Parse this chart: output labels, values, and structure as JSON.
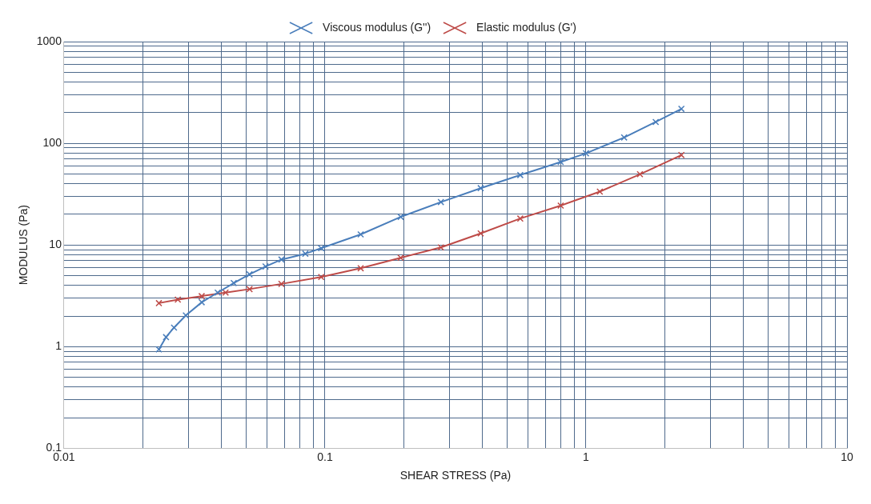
{
  "chart_data": {
    "type": "line",
    "xlabel": "SHEAR STRESS (Pa)",
    "ylabel": "MODULUS (Pa)",
    "log": "xy",
    "grid": true,
    "legend": "top",
    "marker": "cross",
    "line_style": "solid",
    "xlim": [
      0.01,
      10
    ],
    "ylim": [
      0.1,
      1000
    ],
    "xticks": [
      0.01,
      {
        "value": 0.02,
        "label": null
      },
      {
        "value": 0.03,
        "label": null
      },
      {
        "value": 0.04,
        "label": null
      },
      {
        "value": 0.05,
        "label": null
      },
      {
        "value": 0.06,
        "label": null
      },
      {
        "value": 0.07,
        "label": null
      },
      {
        "value": 0.08,
        "label": null
      },
      {
        "value": 0.09,
        "label": null
      },
      0.1,
      {
        "value": 0.2,
        "label": null
      },
      {
        "value": 0.3,
        "label": null
      },
      {
        "value": 0.4,
        "label": null
      },
      {
        "value": 0.5,
        "label": null
      },
      {
        "value": 0.6,
        "label": null
      },
      {
        "value": 0.7,
        "label": null
      },
      {
        "value": 0.8,
        "label": null
      },
      {
        "value": 0.9,
        "label": null
      },
      1,
      {
        "value": 2,
        "label": null
      },
      {
        "value": 3,
        "label": null
      },
      {
        "value": 4,
        "label": null
      },
      {
        "value": 5,
        "label": null
      },
      {
        "value": 6,
        "label": null
      },
      {
        "value": 7,
        "label": null
      },
      {
        "value": 8,
        "label": null
      },
      {
        "value": 9,
        "label": null
      },
      10
    ],
    "yticks": [
      0.1,
      {
        "value": 0.2,
        "label": null
      },
      {
        "value": 0.3,
        "label": null
      },
      {
        "value": 0.4,
        "label": null
      },
      {
        "value": 0.5,
        "label": null
      },
      {
        "value": 0.6,
        "label": null
      },
      {
        "value": 0.7,
        "label": null
      },
      {
        "value": 0.8,
        "label": null
      },
      {
        "value": 0.9,
        "label": null
      },
      1,
      {
        "value": 2,
        "label": null
      },
      {
        "value": 3,
        "label": null
      },
      {
        "value": 4,
        "label": null
      },
      {
        "value": 5,
        "label": null
      },
      {
        "value": 6,
        "label": null
      },
      {
        "value": 7,
        "label": null
      },
      {
        "value": 8,
        "label": null
      },
      {
        "value": 9,
        "label": null
      },
      10,
      {
        "value": 20,
        "label": null
      },
      {
        "value": 30,
        "label": null
      },
      {
        "value": 40,
        "label": null
      },
      {
        "value": 50,
        "label": null
      },
      {
        "value": 60,
        "label": null
      },
      {
        "value": 70,
        "label": null
      },
      {
        "value": 80,
        "label": null
      },
      {
        "value": 90,
        "label": null
      },
      100,
      {
        "value": 200,
        "label": null
      },
      {
        "value": 300,
        "label": null
      },
      {
        "value": 400,
        "label": null
      },
      {
        "value": 500,
        "label": null
      },
      {
        "value": 600,
        "label": null
      },
      {
        "value": 700,
        "label": null
      },
      {
        "value": 800,
        "label": null
      },
      {
        "value": 900,
        "label": null
      },
      1000
    ],
    "series": [
      {
        "name": "Viscous modulus (G'')",
        "color": "#4a7ebb",
        "x": [
          0.0231,
          0.0246,
          0.0264,
          0.0293,
          0.0337,
          0.0388,
          0.0447,
          0.0514,
          0.0592,
          0.0681,
          0.0841,
          0.0967,
          0.137,
          0.195,
          0.278,
          0.395,
          0.56,
          0.8,
          1.0,
          1.4,
          1.85,
          2.32
        ],
        "values": [
          0.94,
          1.24,
          1.54,
          2.03,
          2.73,
          3.4,
          4.22,
          5.14,
          6.14,
          7.19,
          8.2,
          9.3,
          12.7,
          18.9,
          26.4,
          36.2,
          48.7,
          65.4,
          79.7,
          114,
          162,
          218
        ]
      },
      {
        "name": "Elastic modulus (G')",
        "color": "#be4b48",
        "x": [
          0.0231,
          0.0273,
          0.0337,
          0.0416,
          0.0514,
          0.0681,
          0.0967,
          0.137,
          0.195,
          0.278,
          0.395,
          0.56,
          0.8,
          1.13,
          1.61,
          2.32
        ],
        "values": [
          2.68,
          2.9,
          3.14,
          3.4,
          3.68,
          4.14,
          4.84,
          5.9,
          7.48,
          9.47,
          13,
          18.2,
          24.4,
          33.5,
          49.6,
          76.6
        ]
      }
    ]
  }
}
